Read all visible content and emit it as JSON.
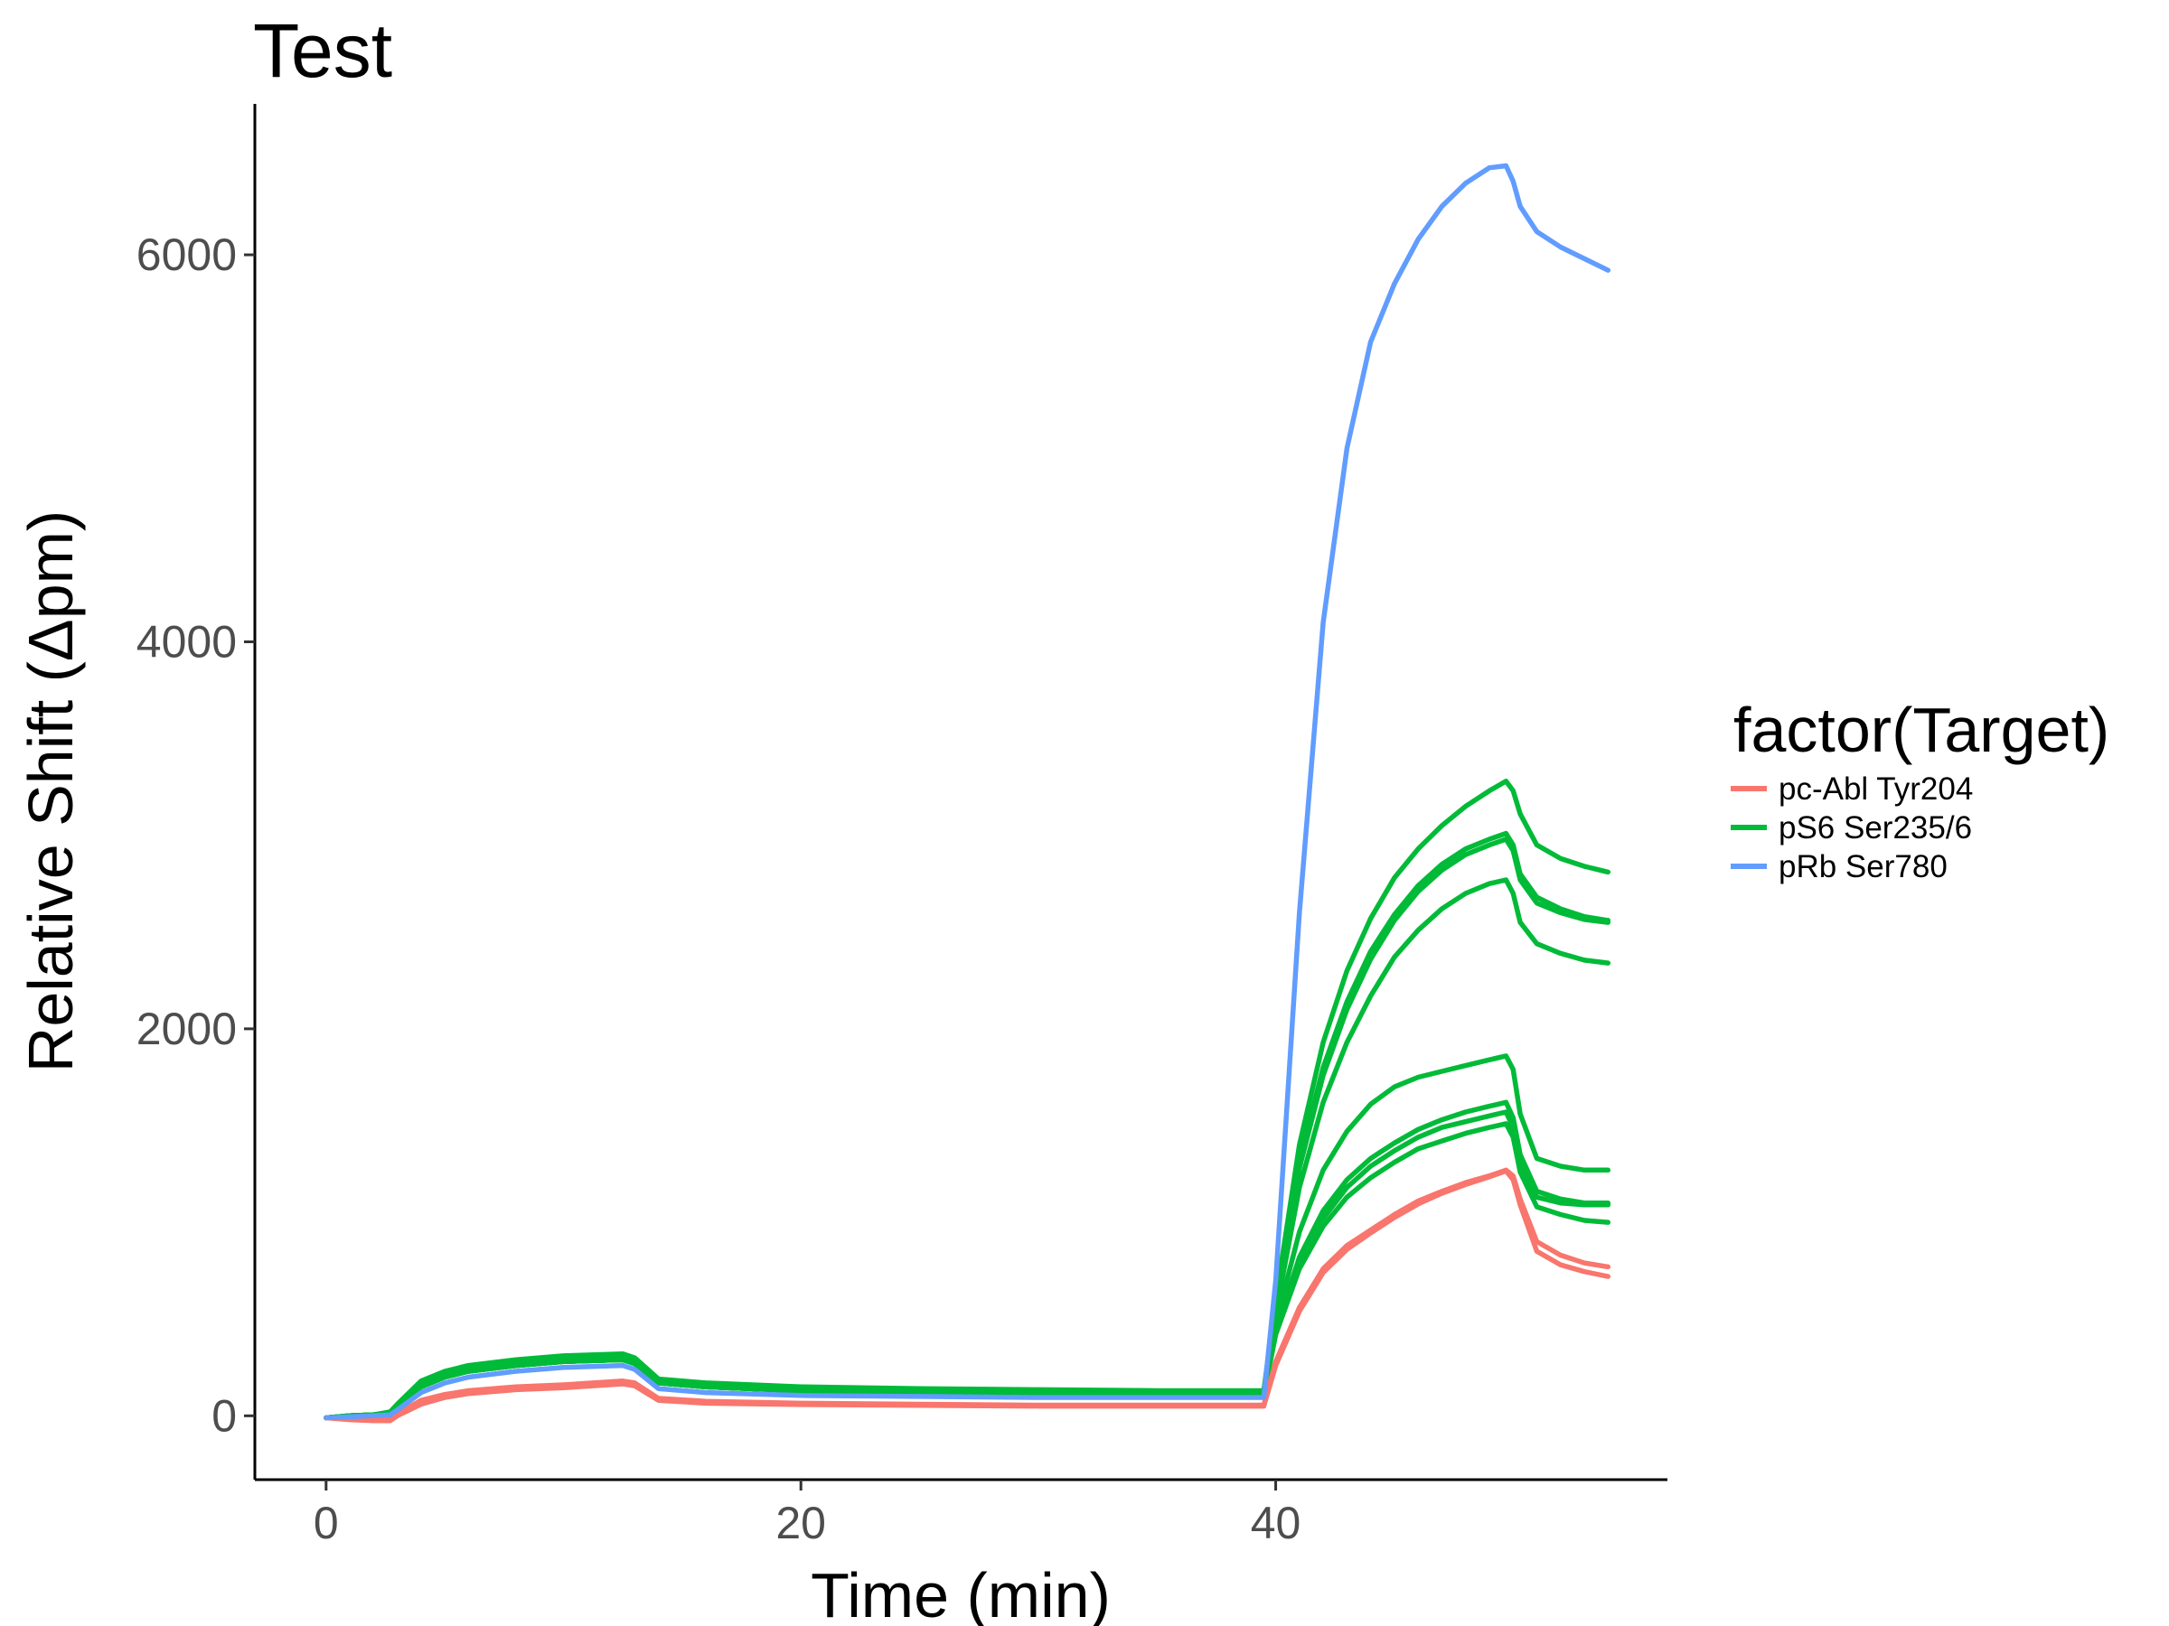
{
  "chart_data": {
    "type": "line",
    "title": "Test",
    "xlabel": "Time (min)",
    "ylabel": "Relative Shift (Δpm)",
    "xlim": [
      -3,
      56.5
    ],
    "ylim": [
      -330,
      6780
    ],
    "x_ticks": [
      0,
      20,
      40
    ],
    "y_ticks": [
      0,
      2000,
      4000,
      6000
    ],
    "grid": false,
    "legend": {
      "title": "factor(Target)",
      "position": "right",
      "entries": [
        {
          "label": "pc-Abl Tyr204",
          "color": "#F8766D"
        },
        {
          "label": "pS6 Ser235/6",
          "color": "#00BA38"
        },
        {
          "label": "pRb Ser780",
          "color": "#619CFF"
        }
      ]
    },
    "x": [
      0,
      1,
      2,
      2.7,
      3,
      4,
      5,
      6,
      8,
      10,
      12.5,
      13,
      14,
      16,
      20,
      25,
      30,
      35,
      39.5,
      40,
      41,
      42,
      43,
      44,
      45,
      46,
      47,
      48,
      49,
      49.7,
      50,
      50.3,
      51,
      52,
      53,
      54
    ],
    "series": [
      {
        "group": "pc-Abl Tyr204",
        "color": "#F8766D",
        "values": [
          -10,
          -15,
          -20,
          -20,
          10,
          80,
          110,
          130,
          150,
          160,
          180,
          170,
          90,
          75,
          65,
          60,
          55,
          55,
          55,
          280,
          560,
          760,
          880,
          960,
          1040,
          1110,
          1160,
          1205,
          1240,
          1270,
          1240,
          1120,
          900,
          830,
          790,
          770
        ]
      },
      {
        "group": "pc-Abl Tyr204",
        "color": "#F8766D",
        "values": [
          -10,
          -20,
          -25,
          -25,
          0,
          60,
          95,
          115,
          135,
          145,
          165,
          155,
          80,
          65,
          58,
          54,
          50,
          50,
          50,
          260,
          540,
          740,
          860,
          945,
          1025,
          1095,
          1150,
          1195,
          1235,
          1265,
          1220,
          1090,
          850,
          780,
          745,
          720
        ]
      },
      {
        "group": "pS6 Ser235/6",
        "color": "#00BA38",
        "values": [
          -10,
          0,
          5,
          20,
          60,
          180,
          230,
          260,
          290,
          310,
          320,
          300,
          190,
          170,
          150,
          140,
          135,
          130,
          130,
          600,
          1400,
          1930,
          2300,
          2570,
          2780,
          2930,
          3050,
          3150,
          3230,
          3280,
          3230,
          3110,
          2950,
          2880,
          2840,
          2810
        ]
      },
      {
        "group": "pS6 Ser235/6",
        "color": "#00BA38",
        "values": [
          -10,
          0,
          5,
          15,
          50,
          170,
          220,
          250,
          280,
          300,
          310,
          290,
          180,
          160,
          140,
          130,
          125,
          120,
          120,
          580,
          1320,
          1800,
          2140,
          2400,
          2590,
          2740,
          2850,
          2930,
          2980,
          3010,
          2950,
          2800,
          2680,
          2620,
          2580,
          2560
        ]
      },
      {
        "group": "pS6 Ser235/6",
        "color": "#00BA38",
        "values": [
          -10,
          0,
          5,
          15,
          45,
          160,
          210,
          240,
          270,
          290,
          300,
          280,
          175,
          155,
          135,
          125,
          120,
          115,
          115,
          560,
          1280,
          1760,
          2100,
          2360,
          2560,
          2710,
          2820,
          2900,
          2950,
          2980,
          2920,
          2770,
          2650,
          2600,
          2565,
          2550
        ]
      },
      {
        "group": "pS6 Ser235/6",
        "color": "#00BA38",
        "values": [
          -10,
          0,
          5,
          15,
          40,
          150,
          200,
          230,
          260,
          280,
          290,
          270,
          170,
          150,
          130,
          120,
          115,
          110,
          110,
          530,
          1180,
          1620,
          1930,
          2170,
          2370,
          2510,
          2620,
          2700,
          2750,
          2770,
          2700,
          2550,
          2440,
          2390,
          2355,
          2340
        ]
      },
      {
        "group": "pS6 Ser235/6",
        "color": "#00BA38",
        "values": [
          -10,
          0,
          5,
          15,
          40,
          150,
          200,
          230,
          260,
          280,
          290,
          270,
          170,
          150,
          130,
          120,
          115,
          110,
          110,
          480,
          950,
          1270,
          1470,
          1610,
          1700,
          1750,
          1780,
          1810,
          1840,
          1860,
          1790,
          1560,
          1330,
          1290,
          1270,
          1270
        ]
      },
      {
        "group": "pS6 Ser235/6",
        "color": "#00BA38",
        "values": [
          -10,
          0,
          5,
          15,
          40,
          150,
          200,
          230,
          260,
          280,
          290,
          270,
          170,
          150,
          130,
          120,
          115,
          110,
          110,
          440,
          820,
          1060,
          1220,
          1330,
          1410,
          1480,
          1530,
          1570,
          1600,
          1620,
          1540,
          1350,
          1160,
          1120,
          1100,
          1100
        ]
      },
      {
        "group": "pS6 Ser235/6",
        "color": "#00BA38",
        "values": [
          -10,
          0,
          5,
          15,
          40,
          150,
          200,
          230,
          260,
          280,
          290,
          270,
          170,
          150,
          130,
          120,
          115,
          110,
          110,
          430,
          790,
          1020,
          1180,
          1290,
          1370,
          1440,
          1490,
          1520,
          1550,
          1570,
          1490,
          1300,
          1130,
          1100,
          1090,
          1090
        ]
      },
      {
        "group": "pS6 Ser235/6",
        "color": "#00BA38",
        "values": [
          -10,
          0,
          5,
          15,
          40,
          150,
          200,
          230,
          260,
          280,
          290,
          270,
          170,
          150,
          130,
          120,
          115,
          110,
          110,
          420,
          760,
          980,
          1130,
          1230,
          1310,
          1380,
          1420,
          1460,
          1490,
          1510,
          1440,
          1260,
          1080,
          1040,
          1010,
          1000
        ]
      },
      {
        "group": "pRb Ser780",
        "color": "#619CFF",
        "values": [
          -10,
          -5,
          0,
          5,
          30,
          120,
          170,
          200,
          230,
          250,
          260,
          240,
          140,
          120,
          105,
          100,
          95,
          95,
          95,
          700,
          2600,
          4100,
          5000,
          5550,
          5850,
          6080,
          6250,
          6370,
          6450,
          6460,
          6380,
          6250,
          6120,
          6040,
          5980,
          5920
        ]
      }
    ]
  }
}
